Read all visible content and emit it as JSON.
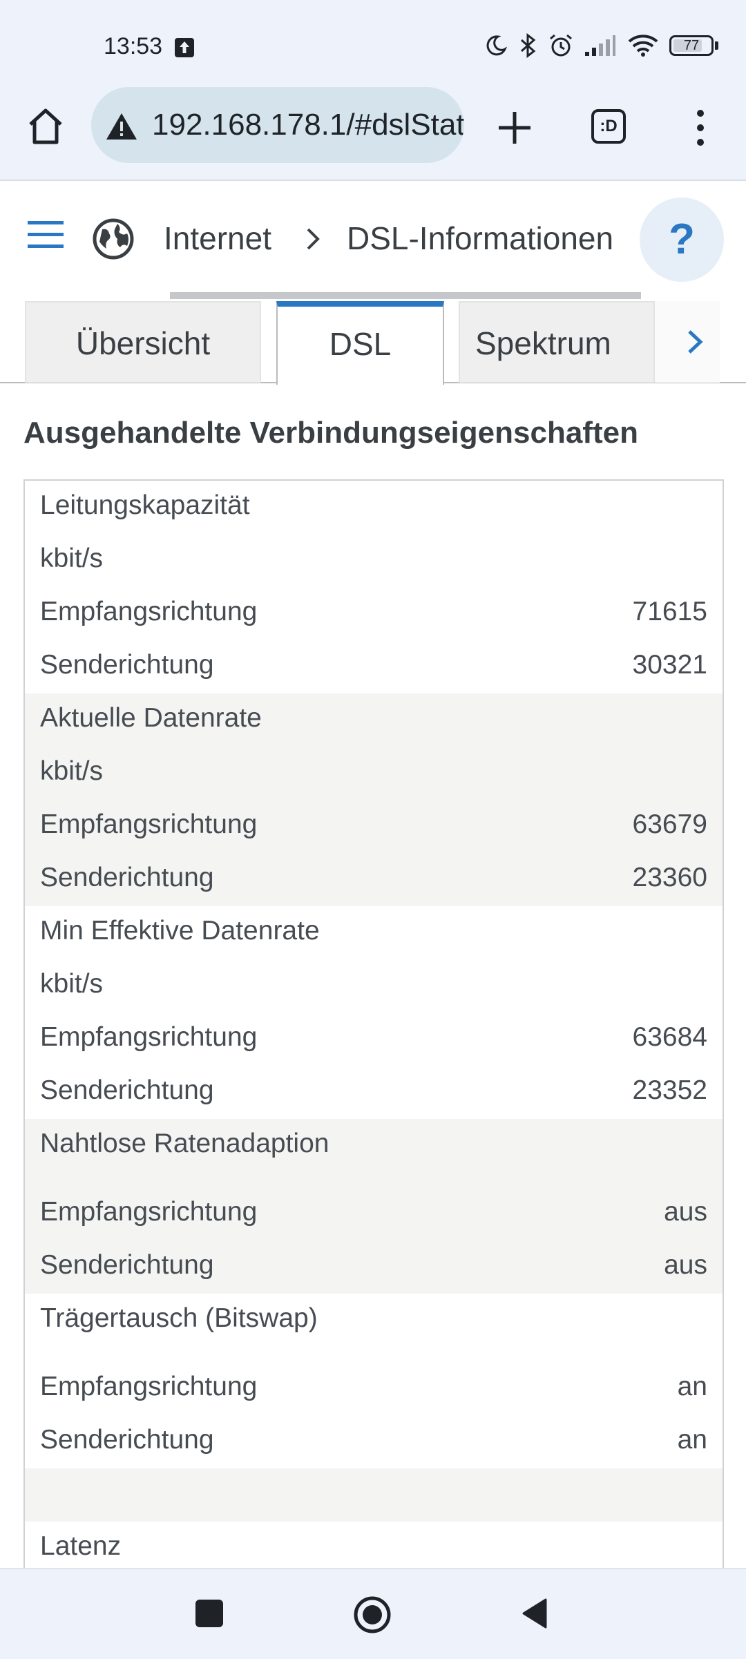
{
  "status_bar": {
    "time": "13:53",
    "battery": "77",
    "icons": [
      "upload-icon",
      "moon-icon",
      "bluetooth-icon",
      "alarm-icon",
      "signal-icon",
      "wifi-icon",
      "battery-icon"
    ]
  },
  "browser": {
    "url": "192.168.178.1/#dslStat",
    "tabs_button_label": ":D",
    "icons": [
      "home-icon",
      "warning-icon",
      "plus-icon",
      "tabs-icon",
      "more-vert-icon"
    ]
  },
  "header": {
    "breadcrumb": [
      "Internet",
      "DSL-Informationen"
    ],
    "help_label": "?"
  },
  "tabs": [
    {
      "label": "Übersicht",
      "active": false
    },
    {
      "label": "DSL",
      "active": true
    },
    {
      "label": "Spektrum",
      "active": false
    }
  ],
  "section": {
    "title": "Ausgehandelte Verbindungseigenschaften"
  },
  "groups": [
    {
      "title": "Leitungskapazität",
      "unit": "kbit/s",
      "rows": [
        {
          "label": "Empfangsrichtung",
          "value": "71615"
        },
        {
          "label": "Senderichtung",
          "value": "30321"
        }
      ]
    },
    {
      "title": "Aktuelle Datenrate",
      "unit": "kbit/s",
      "rows": [
        {
          "label": "Empfangsrichtung",
          "value": "63679"
        },
        {
          "label": "Senderichtung",
          "value": "23360"
        }
      ]
    },
    {
      "title": "Min Effektive Datenrate",
      "unit": "kbit/s",
      "rows": [
        {
          "label": "Empfangsrichtung",
          "value": "63684"
        },
        {
          "label": "Senderichtung",
          "value": "23352"
        }
      ]
    },
    {
      "title": "Nahtlose Ratenadaption",
      "unit": "",
      "rows": [
        {
          "label": "Empfangsrichtung",
          "value": "aus"
        },
        {
          "label": "Senderichtung",
          "value": "aus"
        }
      ]
    },
    {
      "title": "Trägertausch (Bitswap)",
      "unit": "",
      "rows": [
        {
          "label": "Empfangsrichtung",
          "value": "an"
        },
        {
          "label": "Senderichtung",
          "value": "an"
        }
      ]
    },
    {
      "title": "Latenz",
      "unit": "",
      "rows": []
    }
  ],
  "nav": {
    "icons": [
      "recents-icon",
      "home-circle-icon",
      "back-icon"
    ]
  }
}
